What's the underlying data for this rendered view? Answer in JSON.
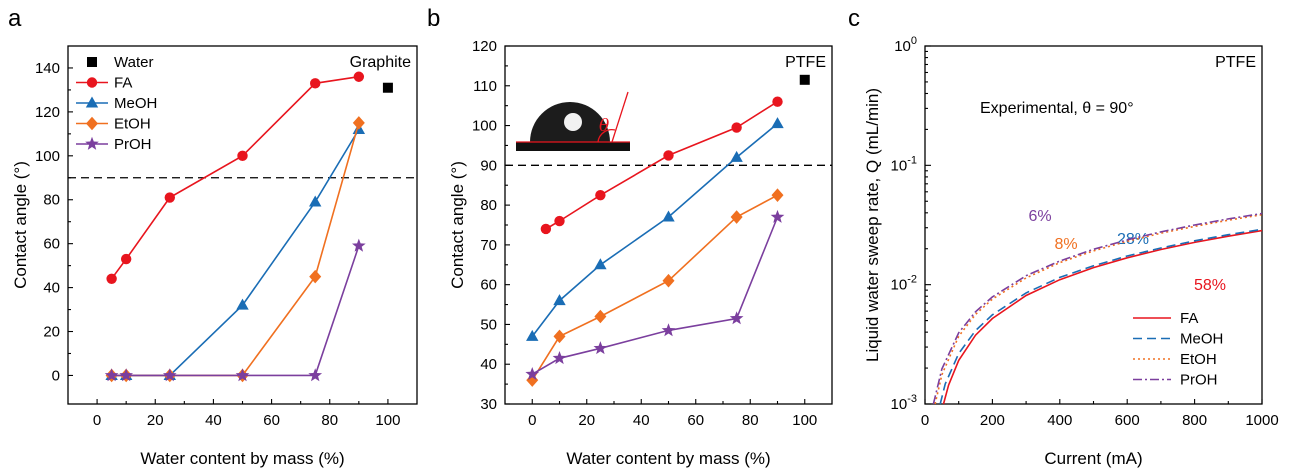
{
  "colors": {
    "water": "#4d4d4d",
    "FA": "#e8151e",
    "MeOH": "#1a6db5",
    "EtOH": "#f07020",
    "PrOH": "#7b3f9e"
  },
  "chart_data": [
    {
      "panel": "a",
      "type": "line",
      "xlabel": "Water content by mass (%)",
      "ylabel": "Contact angle (°)",
      "xlim": [
        -10,
        110
      ],
      "ylim": [
        -13,
        150
      ],
      "xticks": [
        0,
        20,
        40,
        60,
        80,
        100
      ],
      "yticks": [
        0,
        20,
        40,
        60,
        80,
        100,
        120,
        140
      ],
      "reference_line": 90,
      "annotation": "Graphite",
      "legend_position": "top-left",
      "series": [
        {
          "name": "Water",
          "marker": "square",
          "x": [
            100
          ],
          "y": [
            131
          ]
        },
        {
          "name": "FA",
          "marker": "circle",
          "x": [
            5,
            10,
            25,
            50,
            75,
            90
          ],
          "y": [
            44,
            53,
            81,
            100,
            133,
            136
          ]
        },
        {
          "name": "MeOH",
          "marker": "triangle",
          "x": [
            5,
            10,
            25,
            50,
            75,
            90
          ],
          "y": [
            0,
            0,
            0,
            32,
            79,
            112
          ]
        },
        {
          "name": "EtOH",
          "marker": "diamond",
          "x": [
            5,
            10,
            25,
            50,
            75,
            90
          ],
          "y": [
            0,
            0,
            0,
            0,
            45,
            115
          ]
        },
        {
          "name": "PrOH",
          "marker": "star",
          "x": [
            5,
            10,
            25,
            50,
            75,
            90
          ],
          "y": [
            0,
            0,
            0,
            0,
            0,
            59
          ]
        }
      ]
    },
    {
      "panel": "b",
      "type": "line",
      "xlabel": "Water content by mass (%)",
      "ylabel": "Contact angle (°)",
      "xlim": [
        -10,
        110
      ],
      "ylim": [
        30,
        120
      ],
      "xticks": [
        0,
        20,
        40,
        60,
        80,
        100
      ],
      "yticks": [
        30,
        40,
        50,
        60,
        70,
        80,
        90,
        100,
        110,
        120
      ],
      "reference_line": 90,
      "annotation": "PTFE",
      "inset_symbol": "θ",
      "series": [
        {
          "name": "Water",
          "marker": "square",
          "x": [
            100
          ],
          "y": [
            111.5
          ]
        },
        {
          "name": "FA",
          "marker": "circle",
          "x": [
            5,
            10,
            25,
            50,
            75,
            90
          ],
          "y": [
            74,
            76,
            82.5,
            92.5,
            99.5,
            106
          ]
        },
        {
          "name": "MeOH",
          "marker": "triangle",
          "x": [
            0,
            10,
            25,
            50,
            75,
            90
          ],
          "y": [
            47,
            56,
            65,
            77,
            92,
            100.5
          ]
        },
        {
          "name": "EtOH",
          "marker": "diamond",
          "x": [
            0,
            10,
            25,
            50,
            75,
            90
          ],
          "y": [
            36,
            47,
            52,
            61,
            77,
            82.5
          ]
        },
        {
          "name": "PrOH",
          "marker": "star",
          "x": [
            0,
            10,
            25,
            50,
            75,
            90
          ],
          "y": [
            37.5,
            41.5,
            44,
            48.5,
            51.5,
            77
          ]
        }
      ]
    },
    {
      "panel": "c",
      "type": "line",
      "xlabel": "Current (mA)",
      "ylabel": "Liquid water sweep rate, Q (mL/min)",
      "xlim": [
        0,
        1000
      ],
      "ylim": [
        0.001,
        1
      ],
      "yscale": "log",
      "xticks": [
        0,
        200,
        400,
        600,
        800,
        1000
      ],
      "yticks": [
        {
          "base": "10",
          "exp": "-3"
        },
        {
          "base": "10",
          "exp": "-2"
        },
        {
          "base": "10",
          "exp": "-1"
        },
        {
          "base": "10",
          "exp": "0"
        }
      ],
      "annotation": "PTFE",
      "experimental_label": "Experimental, θ = 90°",
      "legend_position": "bottom-right",
      "series": [
        {
          "name": "FA",
          "style": "solid",
          "x": [
            55,
            70,
            100,
            150,
            200,
            300,
            400,
            500,
            600,
            700,
            800,
            900,
            1000
          ],
          "y": [
            0.001,
            0.00144,
            0.00232,
            0.00377,
            0.00521,
            0.00811,
            0.011,
            0.0139,
            0.0168,
            0.0197,
            0.0226,
            0.0255,
            0.0284
          ],
          "label": "58%"
        },
        {
          "name": "MeOH",
          "style": "dashed",
          "x": [
            45,
            60,
            100,
            150,
            200,
            300,
            400,
            500,
            600,
            700,
            800,
            900,
            1000
          ],
          "y": [
            0.001,
            0.00147,
            0.00265,
            0.00412,
            0.00559,
            0.00853,
            0.0115,
            0.0144,
            0.0174,
            0.0203,
            0.0233,
            0.0262,
            0.0291
          ],
          "label": "28%"
        },
        {
          "name": "EtOH",
          "style": "dotted",
          "x": [
            30,
            50,
            100,
            150,
            200,
            300,
            400,
            500,
            600,
            700,
            800,
            900,
            1000
          ],
          "y": [
            0.001,
            0.00176,
            0.00369,
            0.00563,
            0.00757,
            0.0114,
            0.0153,
            0.0192,
            0.0231,
            0.027,
            0.0308,
            0.0347,
            0.0386
          ],
          "label": "8%"
        },
        {
          "name": "PrOH",
          "style": "dashdot",
          "x": [
            25,
            50,
            100,
            150,
            200,
            300,
            400,
            500,
            600,
            700,
            800,
            900,
            1000
          ],
          "y": [
            0.001,
            0.00197,
            0.00395,
            0.00592,
            0.0079,
            0.0119,
            0.0158,
            0.0198,
            0.0237,
            0.0277,
            0.0316,
            0.0356,
            0.0395
          ],
          "label": "6%"
        }
      ]
    }
  ]
}
